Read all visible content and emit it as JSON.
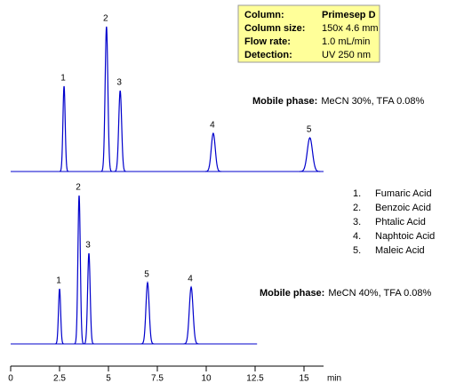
{
  "chart_data": {
    "type": "chromatogram",
    "xlim": [
      0,
      16
    ],
    "xticks": [
      0,
      2.5,
      5,
      7.5,
      10,
      12.5,
      15
    ],
    "x_label": "min",
    "traces": [
      {
        "color": "#0000cc",
        "time_range": [
          0,
          16
        ],
        "mobile_phase_label": "Mobile phase:",
        "mobile_phase": "MeCN 30%, TFA 0.08%",
        "peaks": [
          {
            "label": "1",
            "time": 2.73,
            "height": 96
          },
          {
            "label": "2",
            "time": 4.9,
            "height": 163
          },
          {
            "label": "3",
            "time": 5.6,
            "height": 91
          },
          {
            "label": "4",
            "time": 10.36,
            "height": 43
          },
          {
            "label": "5",
            "time": 15.3,
            "height": 38
          }
        ]
      },
      {
        "color": "#0000cc",
        "time_range": [
          0,
          12.6
        ],
        "mobile_phase_label": "Mobile phase:",
        "mobile_phase": "MeCN 40%, TFA 0.08%",
        "peaks": [
          {
            "label": "1",
            "time": 2.5,
            "height": 62
          },
          {
            "label": "2",
            "time": 3.5,
            "height": 167
          },
          {
            "label": "3",
            "time": 4.0,
            "height": 102
          },
          {
            "label": "5",
            "time": 7.0,
            "height": 69
          },
          {
            "label": "4",
            "time": 9.23,
            "height": 64
          }
        ]
      }
    ]
  },
  "info_box": {
    "rows": [
      [
        "Column:",
        "Primesep  D"
      ],
      [
        "Column size:",
        "150x 4.6  mm"
      ],
      [
        "Flow rate:",
        "1.0 mL/min"
      ],
      [
        "Detection:",
        "UV 250 nm"
      ]
    ]
  },
  "legend": [
    {
      "number": "1.",
      "name": "Fumaric Acid"
    },
    {
      "number": "2.",
      "name": "Benzoic Acid"
    },
    {
      "number": "3.",
      "name": "Phtalic Acid"
    },
    {
      "number": "4.",
      "name": "Naphtoic Acid"
    },
    {
      "number": "5.",
      "name": "Maleic Acid"
    }
  ]
}
